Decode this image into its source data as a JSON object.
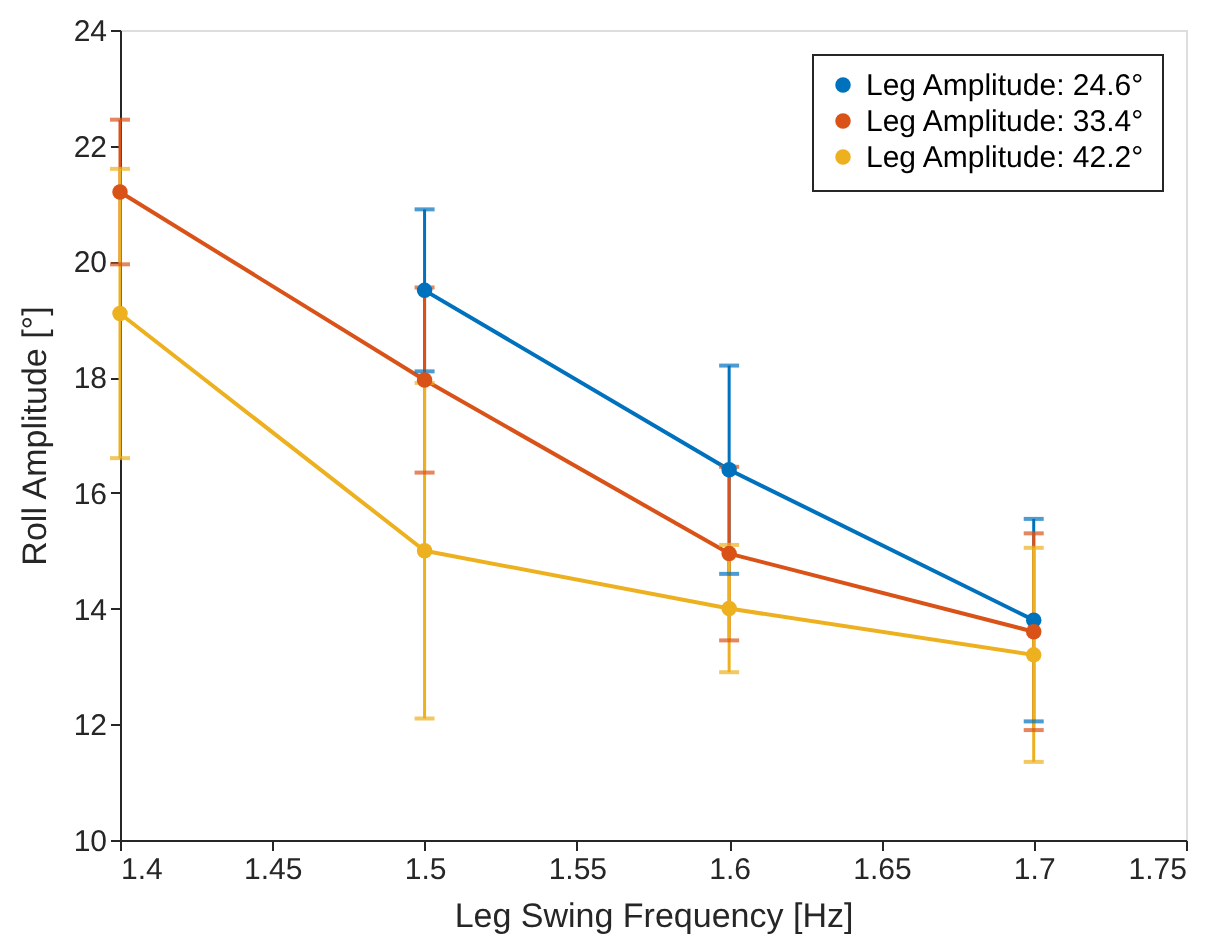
{
  "chart_data": {
    "type": "line",
    "xlabel": "Leg Swing Frequency [Hz]",
    "ylabel": "Roll Amplitude [°]",
    "x": [
      1.4,
      1.5,
      1.6,
      1.7
    ],
    "series": [
      {
        "name": "Leg Amplitude: 24.6°",
        "color": "#0072bd",
        "values": [
          null,
          19.5,
          16.4,
          13.8
        ],
        "errors": [
          null,
          1.4,
          1.8,
          1.75
        ]
      },
      {
        "name": "Leg Amplitude: 33.4°",
        "color": "#d95319",
        "values": [
          21.2,
          17.95,
          14.95,
          13.6
        ],
        "errors": [
          1.25,
          1.6,
          1.5,
          1.7
        ]
      },
      {
        "name": "Leg Amplitude: 42.2°",
        "color": "#edb120",
        "values": [
          19.1,
          15.0,
          14.0,
          13.2
        ],
        "errors": [
          2.5,
          2.9,
          1.1,
          1.85
        ]
      }
    ],
    "xlim": [
      1.4,
      1.75
    ],
    "xticks": [
      1.4,
      1.45,
      1.5,
      1.55,
      1.6,
      1.65,
      1.7,
      1.75
    ],
    "ylim": [
      10,
      24
    ],
    "yticks": [
      10,
      12,
      14,
      16,
      18,
      20,
      22,
      24
    ],
    "grid": false,
    "legend": "top right",
    "marker": "circle",
    "line_style": "solid"
  }
}
